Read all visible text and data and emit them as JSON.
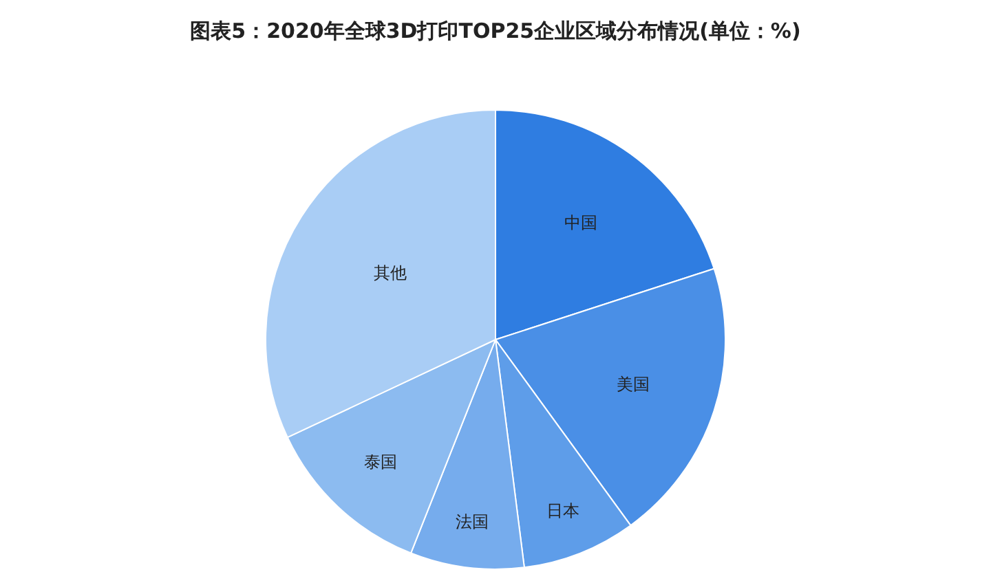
{
  "chart_data": {
    "type": "pie",
    "title": "图表5：2020年全球3D打印TOP25企业区域分布情况(单位：%)",
    "categories": [
      "中国",
      "美国",
      "日本",
      "法国",
      "泰国",
      "其他"
    ],
    "values": [
      20,
      20,
      8,
      8,
      12,
      32
    ],
    "colors": [
      "#2f7de1",
      "#4a8fe6",
      "#5e9de9",
      "#76aced",
      "#8cbbf0",
      "#a9cdf5"
    ],
    "legend": false
  }
}
